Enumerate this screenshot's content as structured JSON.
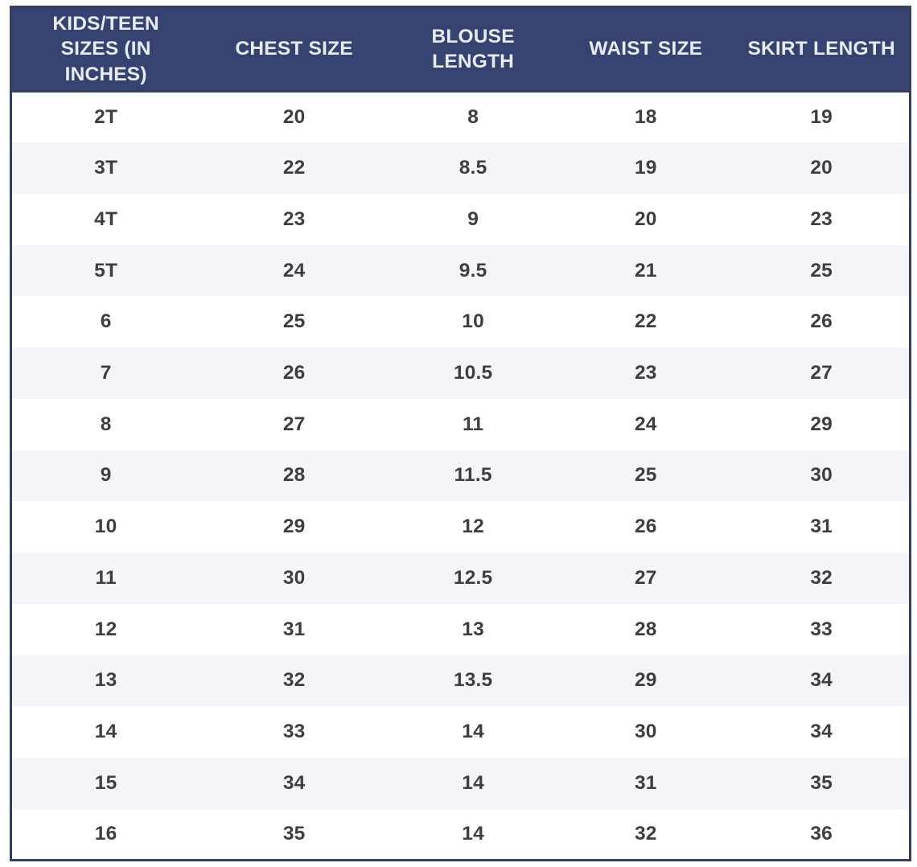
{
  "colors": {
    "header_bg": "#364270",
    "header_text": "#e8ebf3",
    "border": "#363f5e",
    "row_text": "#3e3e40",
    "stripe_bg": "#f4f5f8",
    "row_bg": "#ffffff",
    "page_bg": "#ffffff"
  },
  "chart_data": {
    "type": "table",
    "columns": [
      "KIDS/TEEN SIZES (IN INCHES)",
      "CHEST SIZE",
      "BLOUSE LENGTH",
      "WAIST SIZE",
      "SKIRT LENGTH"
    ],
    "rows": [
      [
        "2T",
        "20",
        "8",
        "18",
        "19"
      ],
      [
        "3T",
        "22",
        "8.5",
        "19",
        "20"
      ],
      [
        "4T",
        "23",
        "9",
        "20",
        "23"
      ],
      [
        "5T",
        "24",
        "9.5",
        "21",
        "25"
      ],
      [
        "6",
        "25",
        "10",
        "22",
        "26"
      ],
      [
        "7",
        "26",
        "10.5",
        "23",
        "27"
      ],
      [
        "8",
        "27",
        "11",
        "24",
        "29"
      ],
      [
        "9",
        "28",
        "11.5",
        "25",
        "30"
      ],
      [
        "10",
        "29",
        "12",
        "26",
        "31"
      ],
      [
        "11",
        "30",
        "12.5",
        "27",
        "32"
      ],
      [
        "12",
        "31",
        "13",
        "28",
        "33"
      ],
      [
        "13",
        "32",
        "13.5",
        "29",
        "34"
      ],
      [
        "14",
        "33",
        "14",
        "30",
        "34"
      ],
      [
        "15",
        "34",
        "14",
        "31",
        "35"
      ],
      [
        "16",
        "35",
        "14",
        "32",
        "36"
      ]
    ]
  }
}
